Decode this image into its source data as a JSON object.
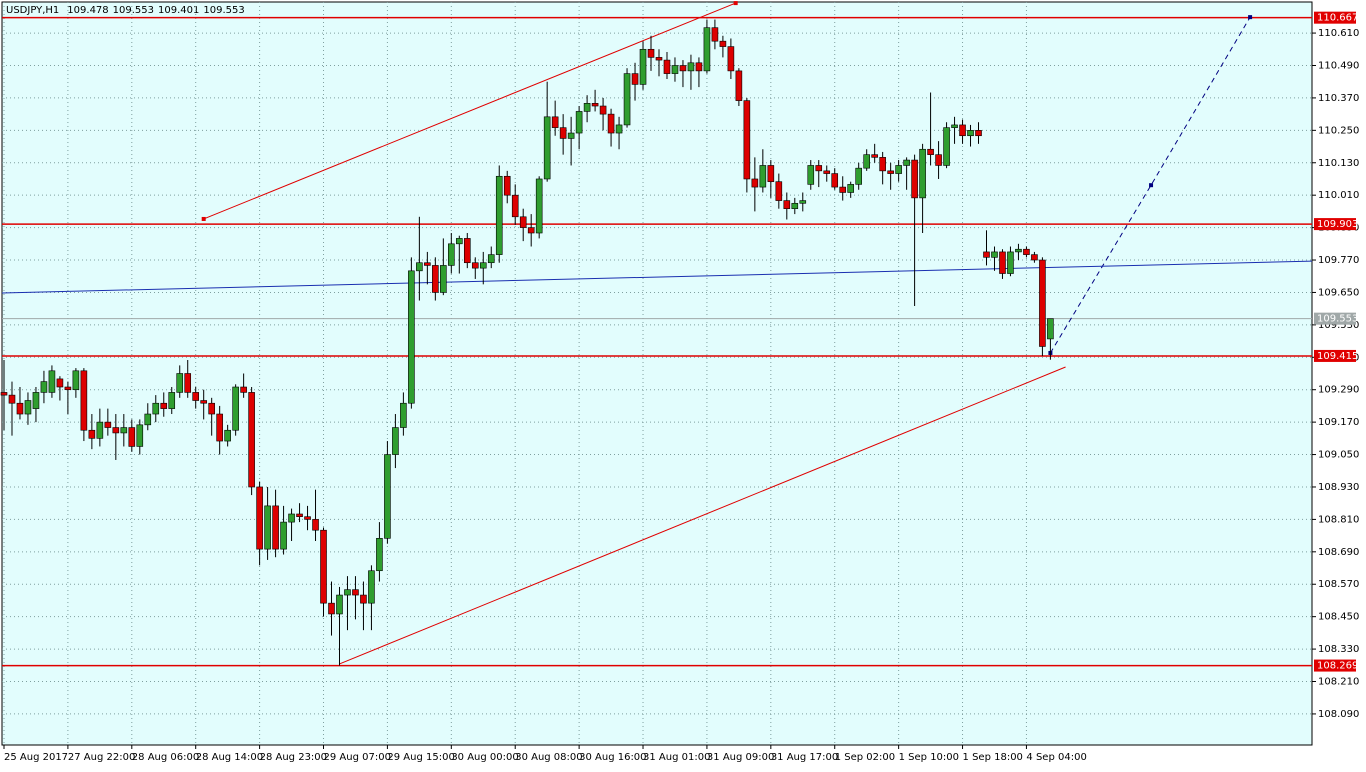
{
  "chart_data": {
    "type": "candlestick",
    "title": "USDJPY,H1",
    "header_values": [
      109.478,
      109.553,
      109.401,
      109.553
    ],
    "categories": [
      "25 Aug 2017",
      null,
      null,
      null,
      null,
      null,
      null,
      null,
      "27 Aug 22:00",
      null,
      null,
      null,
      null,
      null,
      null,
      null,
      "28 Aug 06:00",
      null,
      null,
      null,
      null,
      null,
      null,
      null,
      "28 Aug 14:00",
      null,
      null,
      null,
      null,
      null,
      null,
      null,
      "28 Aug 23:00",
      null,
      null,
      null,
      null,
      null,
      null,
      null,
      "29 Aug 07:00",
      null,
      null,
      null,
      null,
      null,
      null,
      null,
      "29 Aug 15:00",
      null,
      null,
      null,
      null,
      null,
      null,
      null,
      "30 Aug 00:00",
      null,
      null,
      null,
      null,
      null,
      null,
      null,
      "30 Aug 08:00",
      null,
      null,
      null,
      null,
      null,
      null,
      null,
      "30 Aug 16:00",
      null,
      null,
      null,
      null,
      null,
      null,
      null,
      "31 Aug 01:00",
      null,
      null,
      null,
      null,
      null,
      null,
      null,
      "31 Aug 09:00",
      null,
      null,
      null,
      null,
      null,
      null,
      null,
      "31 Aug 17:00",
      null,
      null,
      null,
      null,
      null,
      null,
      null,
      "1 Sep 02:00",
      null,
      null,
      null,
      null,
      null,
      null,
      null,
      "1 Sep 10:00",
      null,
      null,
      null,
      null,
      null,
      null,
      null,
      "1 Sep 18:00",
      null,
      null,
      null,
      null,
      null,
      null,
      null,
      "4 Sep 04:00",
      null,
      null,
      null
    ],
    "open": [
      109.28,
      109.27,
      109.24,
      109.2,
      109.22,
      109.28,
      109.28,
      109.33,
      109.3,
      109.29,
      109.36,
      109.14,
      109.11,
      109.17,
      109.15,
      109.13,
      109.15,
      109.08,
      109.16,
      109.2,
      109.24,
      109.22,
      109.28,
      109.35,
      109.28,
      109.25,
      109.24,
      109.2,
      109.1,
      109.14,
      109.3,
      109.28,
      108.93,
      108.7,
      108.86,
      108.7,
      108.8,
      108.83,
      108.82,
      108.81,
      108.77,
      108.5,
      108.46,
      108.53,
      108.55,
      108.53,
      108.5,
      108.62,
      108.74,
      109.05,
      109.15,
      109.24,
      109.73,
      109.76,
      109.75,
      109.65,
      109.75,
      109.83,
      109.85,
      109.76,
      109.74,
      109.76,
      109.79,
      110.08,
      110.01,
      109.93,
      109.89,
      109.87,
      110.07,
      110.3,
      110.26,
      110.22,
      110.24,
      110.32,
      110.35,
      110.34,
      110.31,
      110.24,
      110.27,
      110.46,
      110.42,
      110.55,
      110.52,
      110.51,
      110.46,
      110.49,
      110.47,
      110.5,
      110.47,
      110.63,
      110.58,
      110.56,
      110.47,
      110.36,
      110.07,
      110.04,
      110.12,
      110.06,
      109.99,
      109.96,
      109.98,
      110.05,
      110.12,
      110.1,
      110.09,
      110.04,
      110.02,
      110.05,
      110.11,
      110.16,
      110.15,
      110.1,
      110.09,
      110.12,
      110.14,
      110.0,
      110.18,
      110.16,
      110.12,
      110.26,
      110.27,
      110.23,
      110.25,
      109.8,
      109.78,
      109.8,
      109.72,
      109.8,
      109.81,
      109.79,
      109.77,
      109.478
    ],
    "high": [
      109.4,
      109.32,
      109.3,
      109.28,
      109.3,
      109.36,
      109.38,
      109.34,
      109.32,
      109.37,
      109.37,
      109.2,
      109.22,
      109.22,
      109.2,
      109.2,
      109.18,
      109.18,
      109.24,
      109.27,
      109.28,
      109.3,
      109.38,
      109.4,
      109.3,
      109.29,
      109.26,
      109.23,
      109.16,
      109.31,
      109.35,
      109.3,
      108.95,
      108.93,
      108.92,
      108.86,
      108.85,
      108.87,
      108.86,
      108.92,
      108.78,
      108.58,
      108.56,
      108.6,
      108.6,
      108.58,
      108.64,
      108.8,
      109.1,
      109.2,
      109.28,
      109.78,
      109.93,
      109.8,
      109.78,
      109.85,
      109.87,
      109.86,
      109.87,
      109.78,
      109.8,
      109.82,
      110.12,
      110.1,
      110.05,
      109.96,
      109.94,
      110.08,
      110.43,
      110.36,
      110.31,
      110.3,
      110.34,
      110.38,
      110.4,
      110.37,
      110.33,
      110.3,
      110.48,
      110.5,
      110.58,
      110.6,
      110.55,
      110.54,
      110.52,
      110.51,
      110.53,
      110.52,
      110.66,
      110.66,
      110.6,
      110.59,
      110.48,
      110.37,
      110.15,
      110.18,
      110.14,
      110.09,
      110.02,
      110.0,
      110.02,
      110.14,
      110.14,
      110.12,
      110.11,
      110.08,
      110.06,
      110.13,
      110.18,
      110.2,
      110.17,
      110.13,
      110.14,
      110.15,
      110.16,
      110.2,
      110.39,
      110.21,
      110.28,
      110.3,
      110.29,
      110.27,
      110.28,
      109.88,
      109.82,
      109.81,
      109.82,
      109.83,
      109.82,
      109.8,
      109.78,
      109.553
    ],
    "low": [
      109.14,
      109.12,
      109.18,
      109.16,
      109.17,
      109.24,
      109.26,
      109.25,
      109.2,
      109.26,
      109.1,
      109.07,
      109.08,
      109.12,
      109.03,
      109.08,
      109.06,
      109.05,
      109.14,
      109.17,
      109.19,
      109.2,
      109.26,
      109.26,
      109.22,
      109.18,
      109.12,
      109.05,
      109.08,
      109.12,
      109.26,
      108.9,
      108.64,
      108.66,
      108.67,
      108.68,
      108.73,
      108.8,
      108.77,
      108.73,
      108.45,
      108.38,
      108.269,
      108.4,
      108.44,
      108.4,
      108.4,
      108.58,
      108.72,
      109.0,
      109.12,
      109.22,
      109.62,
      109.68,
      109.62,
      109.64,
      109.72,
      109.72,
      109.74,
      109.7,
      109.68,
      109.74,
      109.76,
      109.98,
      109.9,
      109.84,
      109.82,
      109.85,
      110.06,
      110.23,
      110.16,
      110.12,
      110.18,
      110.28,
      110.32,
      110.25,
      110.19,
      110.18,
      110.26,
      110.36,
      110.4,
      110.47,
      110.45,
      110.44,
      110.43,
      110.41,
      110.4,
      110.41,
      110.46,
      110.55,
      110.52,
      110.44,
      110.34,
      110.02,
      109.95,
      110.02,
      110.0,
      109.96,
      109.92,
      109.94,
      109.95,
      110.03,
      110.04,
      110.06,
      110.03,
      109.99,
      110.0,
      110.03,
      110.1,
      110.13,
      110.05,
      110.03,
      110.06,
      110.03,
      109.6,
      109.87,
      110.12,
      110.07,
      110.11,
      110.2,
      110.2,
      110.19,
      110.2,
      109.75,
      109.73,
      109.7,
      109.71,
      109.77,
      109.78,
      109.76,
      109.415,
      109.401
    ],
    "close": [
      109.27,
      109.24,
      109.2,
      109.25,
      109.28,
      109.32,
      109.36,
      109.3,
      109.29,
      109.36,
      109.14,
      109.11,
      109.17,
      109.15,
      109.13,
      109.15,
      109.08,
      109.16,
      109.2,
      109.24,
      109.22,
      109.28,
      109.35,
      109.28,
      109.25,
      109.24,
      109.2,
      109.1,
      109.14,
      109.3,
      109.28,
      108.93,
      108.7,
      108.86,
      108.7,
      108.8,
      108.83,
      108.82,
      108.81,
      108.77,
      108.5,
      108.46,
      108.53,
      108.55,
      108.53,
      108.5,
      108.62,
      108.74,
      109.05,
      109.15,
      109.24,
      109.73,
      109.76,
      109.75,
      109.65,
      109.75,
      109.83,
      109.85,
      109.76,
      109.74,
      109.76,
      109.79,
      110.08,
      110.01,
      109.93,
      109.89,
      109.87,
      110.07,
      110.3,
      110.26,
      110.22,
      110.24,
      110.32,
      110.35,
      110.34,
      110.31,
      110.24,
      110.27,
      110.46,
      110.42,
      110.55,
      110.52,
      110.51,
      110.46,
      110.49,
      110.47,
      110.5,
      110.47,
      110.63,
      110.58,
      110.56,
      110.47,
      110.36,
      110.07,
      110.04,
      110.12,
      110.06,
      109.99,
      109.96,
      109.98,
      109.99,
      110.12,
      110.1,
      110.09,
      110.04,
      110.02,
      110.05,
      110.11,
      110.16,
      110.15,
      110.1,
      110.09,
      110.12,
      110.14,
      110.0,
      110.18,
      110.16,
      110.12,
      110.26,
      110.27,
      110.23,
      110.25,
      110.23,
      109.78,
      109.8,
      109.72,
      109.8,
      109.81,
      109.79,
      109.77,
      109.45,
      109.553
    ],
    "up_color": "#2f9e2f",
    "down_color": "#dd0000",
    "xlim": [
      -0.25,
      163.75
    ],
    "ylim": [
      107.975,
      110.725
    ],
    "yticks": [
      {
        "value": 110.61,
        "label": "110.610"
      },
      {
        "value": 110.49,
        "label": "110.490"
      },
      {
        "value": 110.37,
        "label": "110.370"
      },
      {
        "value": 110.25,
        "label": "110.250"
      },
      {
        "value": 110.13,
        "label": "110.130"
      },
      {
        "value": 110.01,
        "label": "110.010"
      },
      {
        "value": 109.89,
        "label": "109.890"
      },
      {
        "value": 109.77,
        "label": "109.770"
      },
      {
        "value": 109.65,
        "label": "109.650"
      },
      {
        "value": 109.53,
        "label": "109.530"
      },
      {
        "value": 109.41,
        "label": "109.410"
      },
      {
        "value": 109.29,
        "label": "109.290"
      },
      {
        "value": 109.17,
        "label": "109.170"
      },
      {
        "value": 109.05,
        "label": "109.050"
      },
      {
        "value": 108.93,
        "label": "108.930"
      },
      {
        "value": 108.81,
        "label": "108.810"
      },
      {
        "value": 108.69,
        "label": "108.690"
      },
      {
        "value": 108.57,
        "label": "108.570"
      },
      {
        "value": 108.45,
        "label": "108.450"
      },
      {
        "value": 108.33,
        "label": "108.330"
      },
      {
        "value": 108.21,
        "label": "108.210"
      },
      {
        "value": 108.09,
        "label": "108.090"
      }
    ],
    "grid": true,
    "hlines": [
      {
        "value": 110.667,
        "color": "#e00000"
      },
      {
        "value": 109.903,
        "color": "#e00000"
      },
      {
        "value": 109.415,
        "color": "#e00000"
      },
      {
        "value": 108.269,
        "color": "#e00000"
      },
      {
        "value": 109.553,
        "color": "#a0a8a8"
      }
    ],
    "trendlines": [
      {
        "x": [
          25,
          91.6
        ],
        "y": [
          109.922,
          110.721
        ],
        "color": "#e00000",
        "dashed": false,
        "markers": true
      },
      {
        "x": [
          42,
          132.9
        ],
        "y": [
          108.275,
          109.374
        ],
        "color": "#e00000",
        "dashed": false,
        "markers": false
      },
      {
        "x": [
          131,
          143.6,
          156
        ],
        "y": [
          109.426,
          110.047,
          110.669
        ],
        "color": "#000080",
        "dashed": true,
        "markers": true
      },
      {
        "x": [
          -0.25,
          163.75
        ],
        "y": [
          109.648,
          109.766
        ],
        "color": "#1a2fb0",
        "dashed": false,
        "markers": false
      }
    ]
  }
}
